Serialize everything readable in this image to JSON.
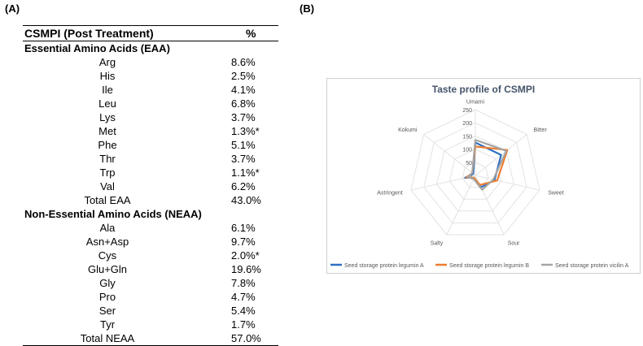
{
  "panel_a_label": "(A)",
  "panel_b_label": "(B)",
  "table": {
    "header": "CSMPI (Post Treatment)",
    "unit": "%",
    "sections": [
      {
        "title": "Essential Amino Acids (EAA)",
        "rows": [
          {
            "name": "Arg",
            "value": "8.6%"
          },
          {
            "name": "His",
            "value": "2.5%"
          },
          {
            "name": "Ile",
            "value": "4.1%"
          },
          {
            "name": "Leu",
            "value": "6.8%"
          },
          {
            "name": "Lys",
            "value": "3.7%"
          },
          {
            "name": "Met",
            "value": "1.3%*"
          },
          {
            "name": "Phe",
            "value": "5.1%"
          },
          {
            "name": "Thr",
            "value": "3.7%"
          },
          {
            "name": "Trp",
            "value": "1.1%*"
          },
          {
            "name": "Val",
            "value": "6.2%"
          }
        ],
        "total": {
          "name": "Total EAA",
          "value": "43.0%"
        }
      },
      {
        "title": "Non-Essential Amino Acids (NEAA)",
        "rows": [
          {
            "name": "Ala",
            "value": "6.1%"
          },
          {
            "name": "Asn+Asp",
            "value": "9.7%"
          },
          {
            "name": "Cys",
            "value": "2.0%*"
          },
          {
            "name": "Glu+Gln",
            "value": "19.6%"
          },
          {
            "name": "Gly",
            "value": "7.8%"
          },
          {
            "name": "Pro",
            "value": "4.7%"
          },
          {
            "name": "Ser",
            "value": "5.4%"
          },
          {
            "name": "Tyr",
            "value": "1.7%"
          }
        ],
        "total": {
          "name": "Total NEAA",
          "value": "57.0%"
        }
      }
    ]
  },
  "chart_data": {
    "type": "radar",
    "title": "Taste profile of CSMPI",
    "axes": [
      "Umami",
      "Bitter",
      "Sweet",
      "Sour",
      "Salty",
      "Astringent",
      "Kokumi"
    ],
    "rlim": [
      0,
      250
    ],
    "ticks": [
      "0",
      "50",
      "100",
      "150",
      "200",
      "250"
    ],
    "tick_values": [
      0,
      50,
      100,
      150,
      200,
      250
    ],
    "legend_position": "bottom",
    "series": [
      {
        "name": "Seed storage protein legumin A",
        "color": "#2e6fc2",
        "values": [
          125,
          125,
          75,
          50,
          10,
          40,
          10
        ]
      },
      {
        "name": "Seed storage protein legumin B",
        "color": "#ed7d31",
        "values": [
          110,
          155,
          85,
          40,
          10,
          35,
          15
        ]
      },
      {
        "name": "Seed storage protein vicilin A",
        "color": "#a5a5a5",
        "values": [
          135,
          150,
          70,
          60,
          15,
          30,
          15
        ]
      }
    ]
  }
}
